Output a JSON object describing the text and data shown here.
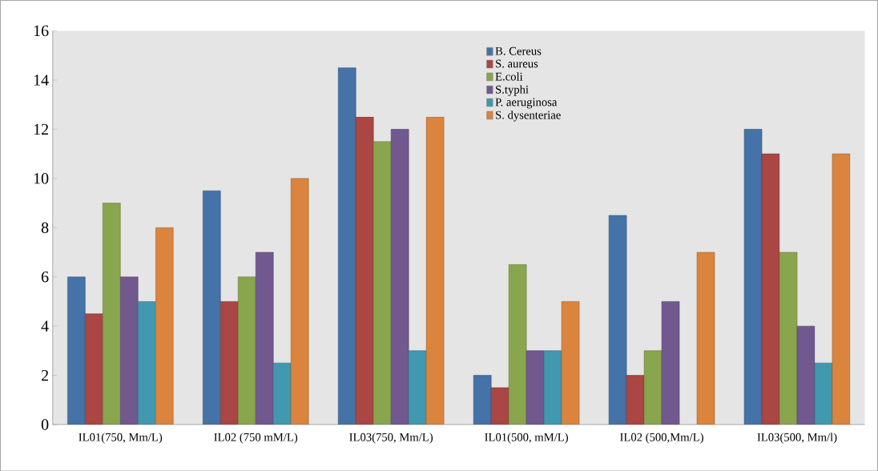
{
  "chart_data": {
    "type": "bar",
    "categories": [
      "IL01(750, Mm/L)",
      "IL02 (750 mM/L)",
      "IL03(750, Mm/L)",
      "IL01(500, mM/L)",
      "IL02 (500,Mm/L)",
      "IL03(500, Mm/l)"
    ],
    "series": [
      {
        "name": "B. Cereus",
        "color": "#4572a7",
        "values": [
          6,
          9.5,
          14.5,
          2,
          8.5,
          12
        ]
      },
      {
        "name": "S. aureus",
        "color": "#aa4643",
        "values": [
          4.5,
          5,
          12.5,
          1.5,
          2,
          11
        ]
      },
      {
        "name": "E.coli",
        "color": "#89a54e",
        "values": [
          9,
          6,
          11.5,
          6.5,
          3,
          7
        ]
      },
      {
        "name": "S.typhi",
        "color": "#71588f",
        "values": [
          6,
          7,
          12,
          3,
          5,
          4
        ]
      },
      {
        "name": "P. aeruginosa",
        "color": "#4198af",
        "values": [
          5,
          2.5,
          3,
          3,
          null,
          2.5
        ]
      },
      {
        "name": "S. dysenteriae",
        "color": "#db843d",
        "values": [
          8,
          10,
          12.5,
          5,
          7,
          11
        ]
      }
    ],
    "ylim": [
      0,
      16
    ],
    "yticks": [
      0,
      2,
      4,
      6,
      8,
      10,
      12,
      14,
      16
    ],
    "grid": false,
    "legend": "top"
  }
}
